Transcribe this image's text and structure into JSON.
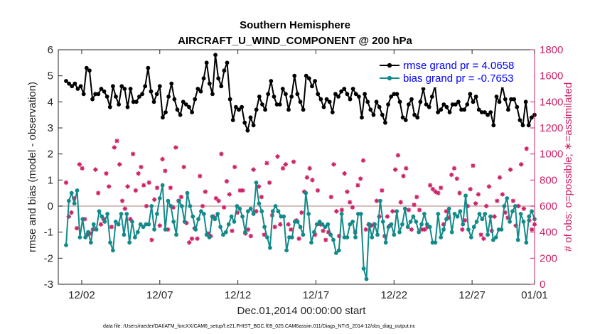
{
  "chart_data": {
    "type": "line",
    "title_line1": "Southern Hemisphere",
    "title_line2": "AIRCRAFT_U_WIND_COMPONENT @ 200 hPa",
    "xlabel": "Dec.01,2014 00:00:00 start",
    "ylabel_left": "rmse and bias (model - observation)",
    "ylabel_right": "# of obs: o=possible; ∗=assimilated",
    "footer": "data file: /Users/raeder/DAI/ATM_forcXX/CAM6_setup/f.e21.FHIST_BGC.f09_025.CAM6assim.011/Diags_NTrS_2014-12/obs_diag_output.nc",
    "xlim": [
      0.5,
      31.0
    ],
    "ylim_left": [
      -3,
      6
    ],
    "ylim_right": [
      0,
      1800
    ],
    "x_tick_values": [
      2,
      7,
      12,
      17,
      22,
      27,
      32
    ],
    "x_tick_labels": [
      "12/02",
      "12/07",
      "12/12",
      "12/17",
      "12/22",
      "12/27",
      "01/01"
    ],
    "y_left_ticks": [
      "-3",
      "-2",
      "-1",
      "0",
      "1",
      "2",
      "3",
      "4",
      "5",
      "6"
    ],
    "y_right_ticks": [
      "0",
      "200",
      "400",
      "600",
      "800",
      "1000",
      "1200",
      "1400",
      "1600",
      "1800"
    ],
    "colors": {
      "rmse": "#000000",
      "bias": "#138a8a",
      "obs": "#cc2266",
      "zero_line": "#c9a9a9",
      "legend_text": "#0000ff"
    },
    "series": [
      {
        "name": "rmse grand pr = 4.0658",
        "axis": "left",
        "values": [
          4.8,
          4.7,
          4.6,
          4.7,
          4.5,
          4.6,
          4.3,
          5.3,
          5.2,
          4.1,
          4.3,
          4.3,
          4.5,
          4.4,
          4.2,
          3.8,
          4.6,
          4.2,
          3.9,
          4.6,
          4.5,
          3.8,
          4.5,
          4.0,
          4.0,
          4.2,
          4.3,
          4.6,
          5.3,
          4.4,
          4.0,
          4.3,
          4.6,
          3.4,
          3.6,
          4.2,
          4.7,
          4.1,
          3.7,
          3.5,
          4.0,
          3.9,
          3.8,
          3.6,
          4.1,
          4.5,
          4.4,
          4.9,
          5.5,
          4.7,
          4.3,
          5.8,
          4.9,
          4.6,
          5.2,
          5.5,
          4.1,
          3.3,
          3.8,
          3.7,
          3.8,
          3.2,
          2.9,
          3.4,
          3.1,
          3.7,
          4.2,
          3.9,
          3.7,
          4.3,
          4.8,
          4.2,
          3.9,
          3.9,
          4.5,
          4.3,
          3.7,
          4.2,
          5.0,
          4.3,
          4.0,
          3.7,
          5.0,
          4.9,
          4.6,
          4.8,
          4.3,
          4.1,
          3.8,
          4.1,
          4.0,
          3.6,
          4.3,
          4.2,
          4.4,
          4.5,
          4.3,
          4.1,
          4.5,
          4.3,
          4.2,
          3.4,
          4.3,
          4.0,
          3.7,
          3.5,
          4.0,
          3.8,
          3.5,
          3.2,
          3.9,
          4.2,
          4.3,
          4.3,
          4.0,
          3.4,
          3.3,
          3.9,
          4.1,
          3.5,
          3.4,
          4.0,
          4.5,
          3.9,
          3.8,
          4.2,
          4.6,
          3.6,
          3.7,
          3.9,
          3.8,
          3.6,
          3.9,
          3.9,
          4.0,
          3.7,
          3.7,
          3.9,
          4.3,
          4.0,
          4.2,
          3.7,
          3.6,
          3.6,
          3.5,
          3.6,
          3.1,
          4.2,
          4.0,
          4.6,
          4.1,
          3.7,
          4.1,
          4.1,
          3.8,
          3.3,
          3.1,
          4.0,
          3.1,
          3.4,
          3.5
        ]
      },
      {
        "name": "bias grand pr = -0.7653",
        "axis": "left",
        "values": [
          -1.5,
          0.2,
          0.5,
          0.1,
          0.6,
          -1.2,
          -0.5,
          -1.2,
          -1.0,
          -1.4,
          -0.7,
          -0.9,
          -0.2,
          -0.4,
          -0.6,
          -0.3,
          -1.4,
          -1.7,
          -0.6,
          -0.7,
          -0.3,
          -1.1,
          -0.3,
          -1.4,
          -0.6,
          -1.2,
          -1.0,
          -0.7,
          -0.8,
          -0.7,
          -0.7,
          0.0,
          -0.9,
          -0.3,
          0.3,
          0.8,
          -0.9,
          0.2,
          0.0,
          -0.6,
          -1.1,
          0.2,
          0.0,
          -0.6,
          0.5,
          0.0,
          -0.4,
          -0.9,
          -0.5,
          -0.2,
          -0.3,
          -1.1,
          -1.2,
          -0.4,
          -0.5,
          -0.3,
          -0.8,
          -1.1,
          -1.0,
          -0.7,
          -0.4,
          -0.6,
          0.0,
          -0.1,
          -0.4,
          -1.0,
          -0.2,
          -0.1,
          -0.3,
          0.9,
          0.1,
          -0.2,
          -0.8,
          -1.2,
          -1.6,
          -0.2,
          0.0,
          -0.2,
          -0.4,
          -0.4,
          -1.7,
          -1.2,
          -1.2,
          -0.6,
          -0.6,
          -0.8,
          -1.1,
          0.5,
          -0.3,
          -1.4,
          -1.0,
          -0.7,
          -0.6,
          -0.7,
          -0.8,
          -0.7,
          -1.1,
          -1.3,
          -1.8,
          -1.7,
          -0.3,
          -1.2,
          -1.2,
          -0.7,
          -0.6,
          -1.2,
          -0.3,
          -0.3,
          -2.4,
          -2.8,
          -0.7,
          -1.2,
          -0.7,
          -1.1,
          0.2,
          -0.6,
          -1.4,
          -0.8,
          -0.7,
          -1.1,
          -0.2,
          -1.0,
          -0.7,
          -0.1,
          -0.8,
          -0.6,
          -0.4,
          -0.6,
          -1.0,
          -0.7,
          -0.3,
          -0.7,
          -0.8,
          -1.4,
          -1.4,
          -0.3,
          -1.2,
          -0.9,
          -0.5,
          -0.1,
          -1.0,
          -0.3,
          -0.4,
          -0.2,
          -0.7,
          0.4,
          -0.9,
          -1.2,
          -0.8,
          -0.6,
          -0.3,
          -0.5,
          -0.3,
          -1.1,
          -0.4,
          -1.3,
          -1.2,
          -0.9,
          -0.9,
          0.0,
          0.3,
          -0.6,
          -0.2,
          0.0,
          -1.3,
          -0.3,
          -0.6,
          -1.4,
          -0.4,
          -0.2,
          -0.5
        ]
      },
      {
        "name": "obs assimilated",
        "axis": "right",
        "values": [
          780,
          520,
          550,
          660,
          430,
          920,
          890,
          500,
          380,
          390,
          420,
          880,
          700,
          460,
          500,
          850,
          750,
          440,
          1050,
          1100,
          920,
          640,
          580,
          750,
          500,
          1000,
          720,
          850,
          900,
          760,
          600,
          780,
          340,
          650,
          740,
          450,
          960,
          870,
          420,
          740,
          590,
          1050,
          640,
          670,
          900,
          470,
          320,
          350,
          430,
          350,
          830,
          600,
          710,
          390,
          370,
          520,
          660,
          640,
          1000,
          590,
          790,
          690,
          410,
          900,
          550,
          720,
          720,
          390,
          420,
          370,
          880,
          560,
          750,
          670,
          380,
          930,
          780,
          530,
          440,
          980,
          460,
          890,
          920,
          460,
          420,
          940,
          490,
          350,
          550,
          710,
          820,
          890,
          800,
          380,
          720,
          460,
          410,
          340,
          400,
          670,
          920,
          560,
          370,
          570,
          850,
          710,
          630,
          590,
          400,
          760,
          810,
          950,
          420,
          460,
          450,
          460,
          640,
          520,
          720,
          370,
          520,
          450,
          560,
          880,
          990,
          630,
          830,
          890,
          570,
          420,
          610,
          670,
          570,
          420,
          420,
          440,
          760,
          730,
          710,
          700,
          740,
          460,
          560,
          510,
          840,
          890,
          810,
          700,
          420,
          490,
          600,
          730,
          910,
          620,
          690,
          380,
          350,
          600,
          750,
          410,
          520,
          640,
          820,
          690,
          550,
          510,
          880,
          640,
          450,
          600,
          920,
          580,
          1040,
          490,
          420,
          460
        ]
      }
    ]
  },
  "legend": {
    "rmse_label": "rmse grand pr = 4.0658",
    "bias_label": "bias grand pr = -0.7653"
  }
}
